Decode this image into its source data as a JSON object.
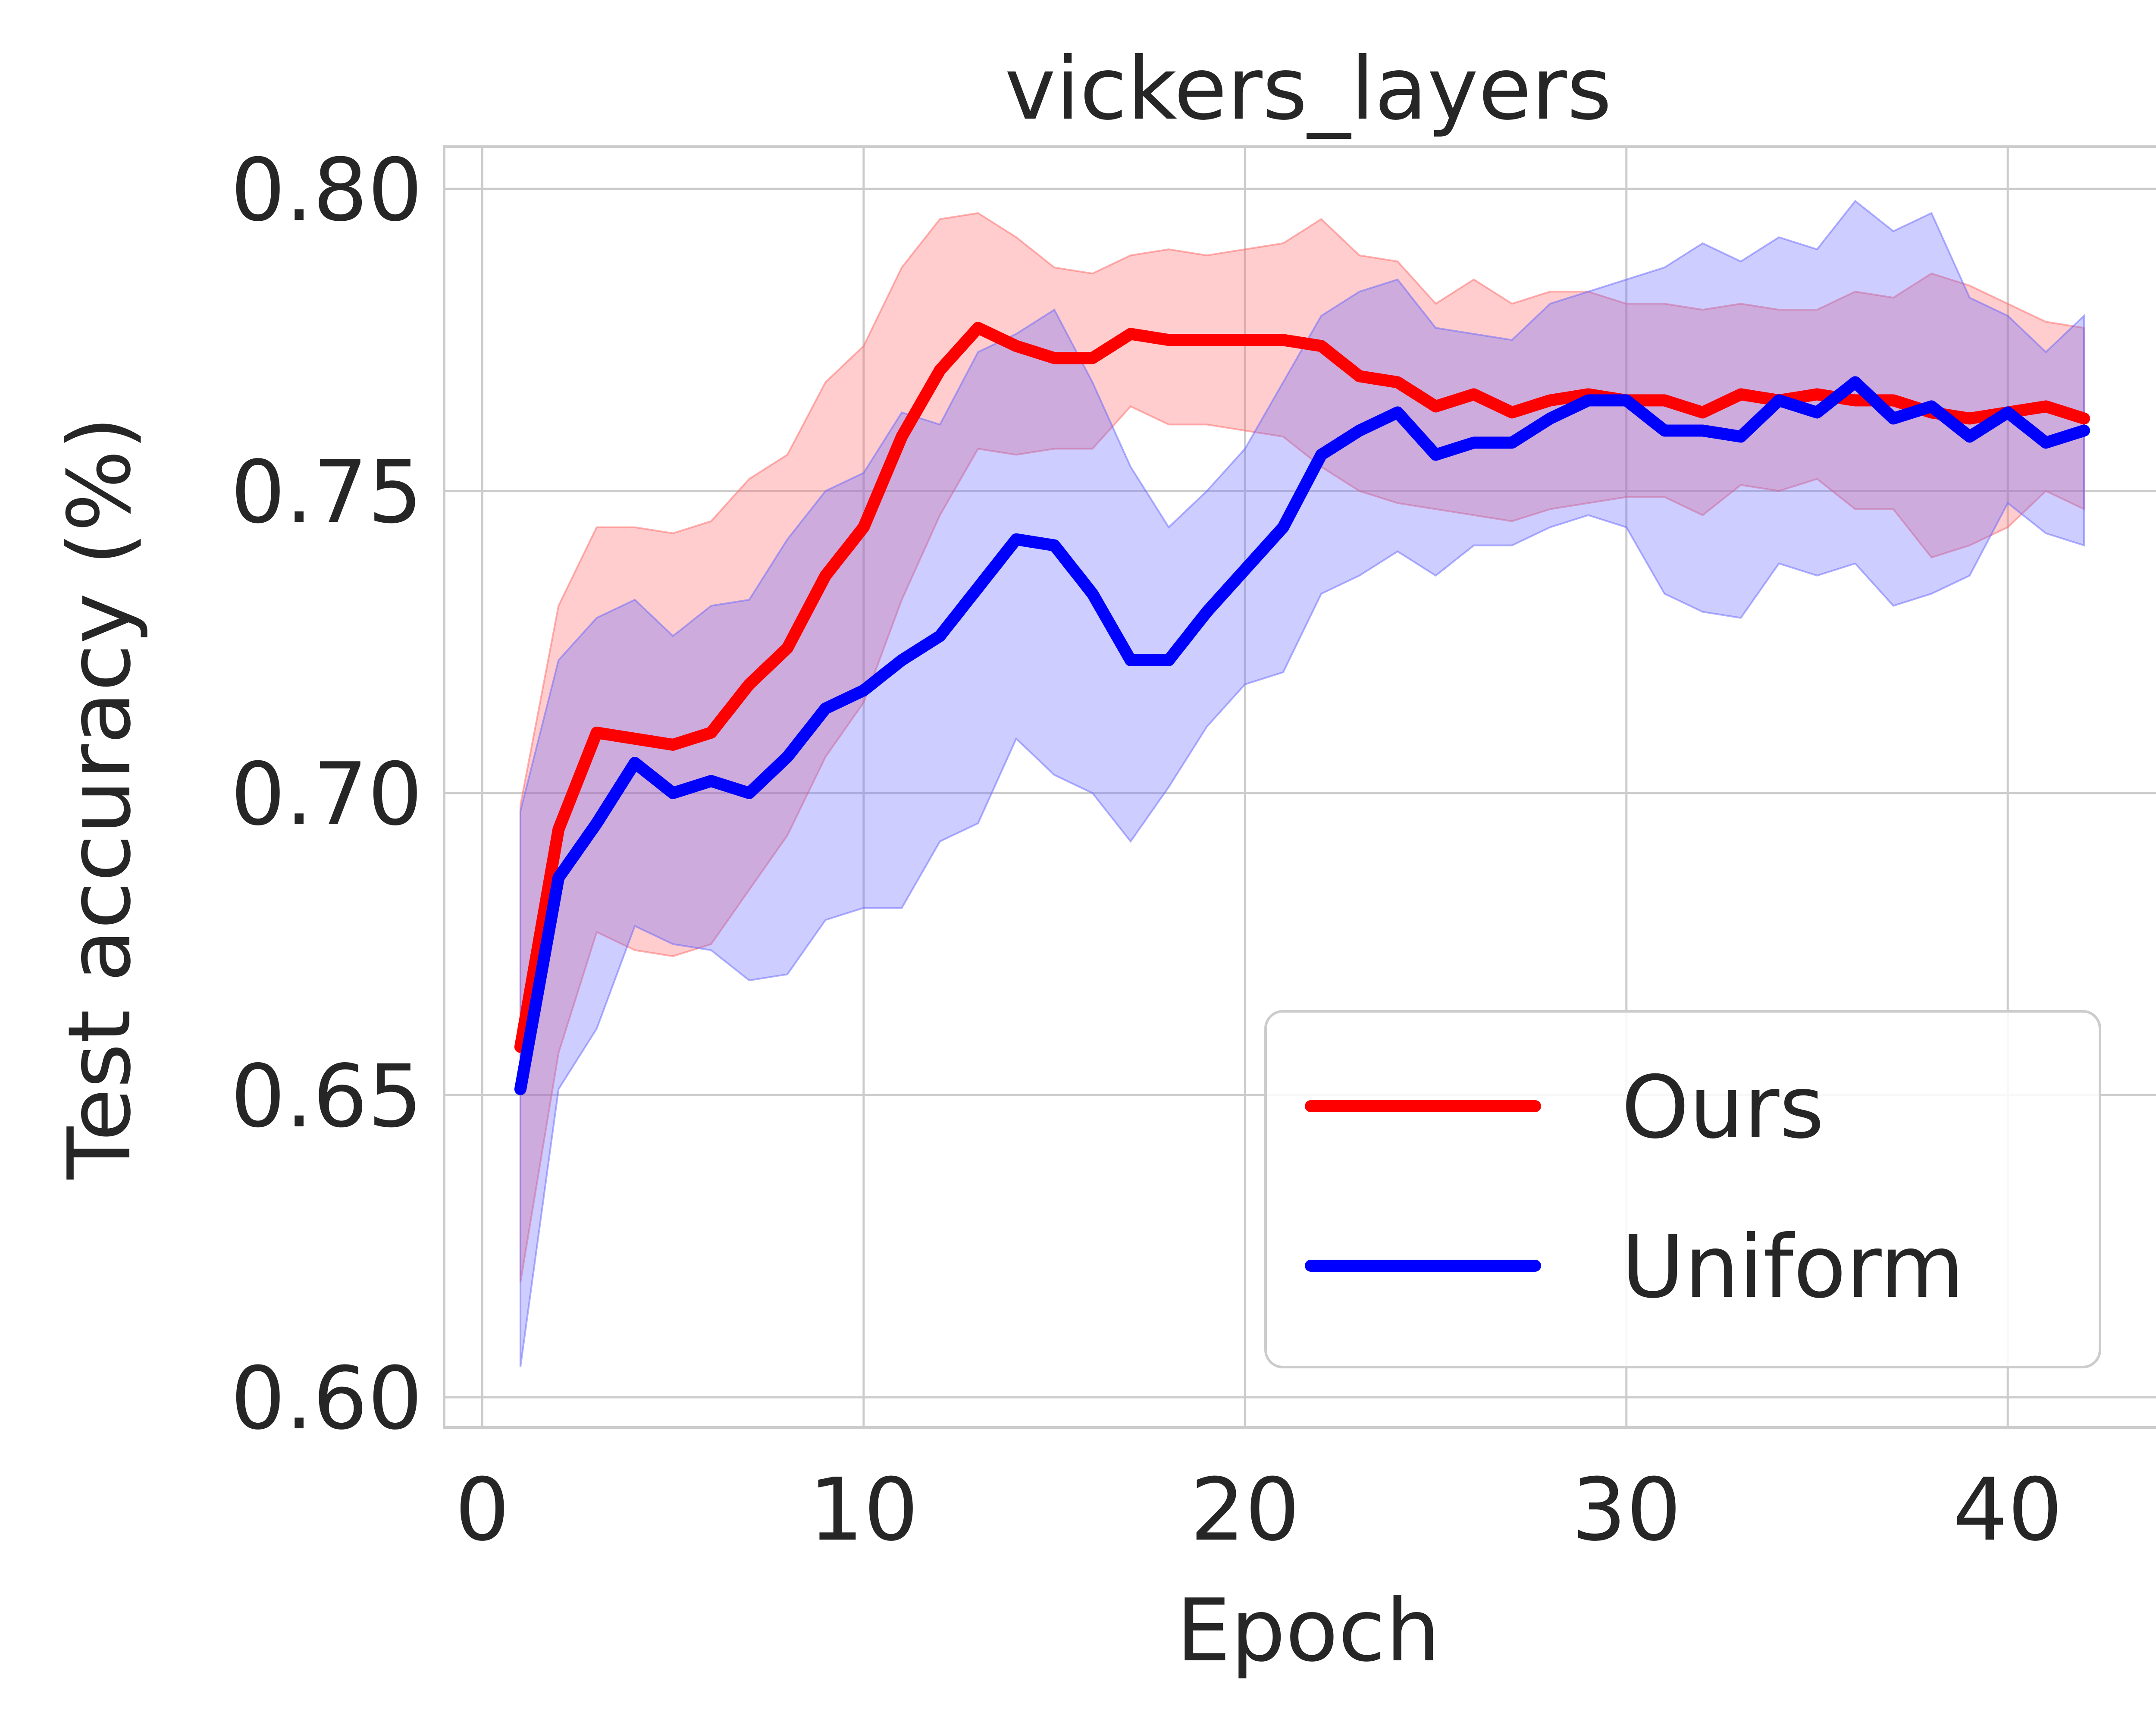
{
  "chart_data": {
    "type": "line",
    "title": "vickers_layers",
    "xlabel": "Epoch",
    "ylabel": "Test accuracy (%)",
    "xlim": [
      -1,
      44
    ],
    "ylim": [
      0.595,
      0.807
    ],
    "xticks": [
      0,
      10,
      20,
      30,
      40
    ],
    "xtick_labels": [
      "0",
      "10",
      "20",
      "30",
      "40"
    ],
    "yticks": [
      0.6,
      0.65,
      0.7,
      0.75,
      0.8
    ],
    "ytick_labels": [
      "0.60",
      "0.65",
      "0.70",
      "0.75",
      "0.80"
    ],
    "grid": true,
    "legend_position": "lower-right",
    "x": [
      1,
      2,
      3,
      4,
      5,
      6,
      7,
      8,
      9,
      10,
      11,
      12,
      13,
      14,
      15,
      16,
      17,
      18,
      19,
      20,
      21,
      22,
      23,
      24,
      25,
      26,
      27,
      28,
      29,
      30,
      31,
      32,
      33,
      34,
      35,
      36,
      37,
      38,
      39,
      40,
      41,
      42
    ],
    "series": [
      {
        "name": "Ours",
        "color": "#ff0000",
        "band_color": "#ff6666",
        "values": [
          0.658,
          0.694,
          0.71,
          0.709,
          0.708,
          0.71,
          0.718,
          0.724,
          0.736,
          0.744,
          0.759,
          0.77,
          0.777,
          0.774,
          0.772,
          0.772,
          0.776,
          0.775,
          0.775,
          0.775,
          0.775,
          0.774,
          0.769,
          0.768,
          0.764,
          0.766,
          0.763,
          0.765,
          0.766,
          0.765,
          0.765,
          0.763,
          0.766,
          0.765,
          0.766,
          0.765,
          0.765,
          0.763,
          0.762,
          0.763,
          0.764,
          0.762
        ],
        "upper": [
          0.698,
          0.731,
          0.744,
          0.744,
          0.743,
          0.745,
          0.752,
          0.756,
          0.768,
          0.774,
          0.787,
          0.795,
          0.796,
          0.792,
          0.787,
          0.786,
          0.789,
          0.79,
          0.789,
          0.79,
          0.791,
          0.795,
          0.789,
          0.788,
          0.781,
          0.785,
          0.781,
          0.783,
          0.783,
          0.781,
          0.781,
          0.78,
          0.781,
          0.78,
          0.78,
          0.783,
          0.782,
          0.786,
          0.784,
          0.781,
          0.778,
          0.777
        ],
        "lower": [
          0.619,
          0.657,
          0.677,
          0.674,
          0.673,
          0.675,
          0.684,
          0.693,
          0.706,
          0.715,
          0.732,
          0.746,
          0.757,
          0.756,
          0.757,
          0.757,
          0.764,
          0.761,
          0.761,
          0.76,
          0.759,
          0.754,
          0.75,
          0.748,
          0.747,
          0.746,
          0.745,
          0.747,
          0.748,
          0.749,
          0.749,
          0.746,
          0.751,
          0.75,
          0.752,
          0.747,
          0.747,
          0.739,
          0.741,
          0.744,
          0.75,
          0.747
        ]
      },
      {
        "name": "Uniform",
        "color": "#0000ff",
        "band_color": "#6666ff",
        "values": [
          0.651,
          0.686,
          0.695,
          0.705,
          0.7,
          0.702,
          0.7,
          0.706,
          0.714,
          0.717,
          0.722,
          0.726,
          0.734,
          0.742,
          0.741,
          0.733,
          0.722,
          0.722,
          0.73,
          0.737,
          0.744,
          0.756,
          0.76,
          0.763,
          0.756,
          0.758,
          0.758,
          0.762,
          0.765,
          0.765,
          0.76,
          0.76,
          0.759,
          0.765,
          0.763,
          0.768,
          0.762,
          0.764,
          0.759,
          0.763,
          0.758,
          0.76
        ],
        "upper": [
          0.697,
          0.722,
          0.729,
          0.732,
          0.726,
          0.731,
          0.732,
          0.742,
          0.75,
          0.753,
          0.763,
          0.761,
          0.773,
          0.776,
          0.78,
          0.768,
          0.754,
          0.744,
          0.75,
          0.757,
          0.768,
          0.779,
          0.783,
          0.785,
          0.777,
          0.776,
          0.775,
          0.781,
          0.783,
          0.785,
          0.787,
          0.791,
          0.788,
          0.792,
          0.79,
          0.798,
          0.793,
          0.796,
          0.782,
          0.779,
          0.773,
          0.779
        ],
        "lower": [
          0.605,
          0.651,
          0.661,
          0.678,
          0.675,
          0.674,
          0.669,
          0.67,
          0.679,
          0.681,
          0.681,
          0.692,
          0.695,
          0.709,
          0.703,
          0.7,
          0.692,
          0.701,
          0.711,
          0.718,
          0.72,
          0.733,
          0.736,
          0.74,
          0.736,
          0.741,
          0.741,
          0.744,
          0.746,
          0.744,
          0.733,
          0.73,
          0.729,
          0.738,
          0.736,
          0.738,
          0.731,
          0.733,
          0.736,
          0.748,
          0.743,
          0.741
        ]
      }
    ]
  }
}
